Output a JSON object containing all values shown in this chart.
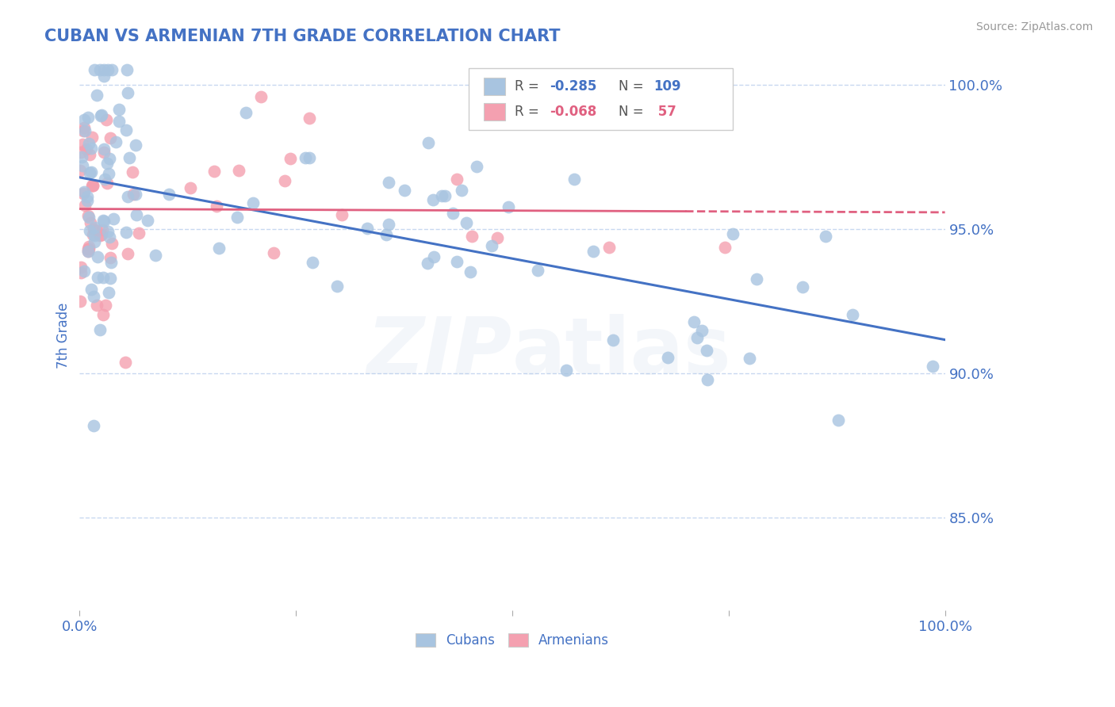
{
  "title": "CUBAN VS ARMENIAN 7TH GRADE CORRELATION CHART",
  "source_text": "Source: ZipAtlas.com",
  "ylabel": "7th Grade",
  "xlim": [
    0.0,
    1.0
  ],
  "ylim": [
    0.818,
    1.008
  ],
  "yticks": [
    0.85,
    0.9,
    0.95,
    1.0
  ],
  "ytick_labels": [
    "85.0%",
    "90.0%",
    "95.0%",
    "100.0%"
  ],
  "cuban_R": -0.285,
  "cuban_N": 109,
  "armenian_R": -0.068,
  "armenian_N": 57,
  "cuban_color": "#a8c4e0",
  "armenian_color": "#f4a0b0",
  "cuban_line_color": "#4472c4",
  "armenian_line_color": "#e06080",
  "title_color": "#4472c4",
  "axis_color": "#4472c4",
  "watermark_alpha": 0.12,
  "background_color": "#ffffff",
  "grid_color": "#c8d8f0"
}
